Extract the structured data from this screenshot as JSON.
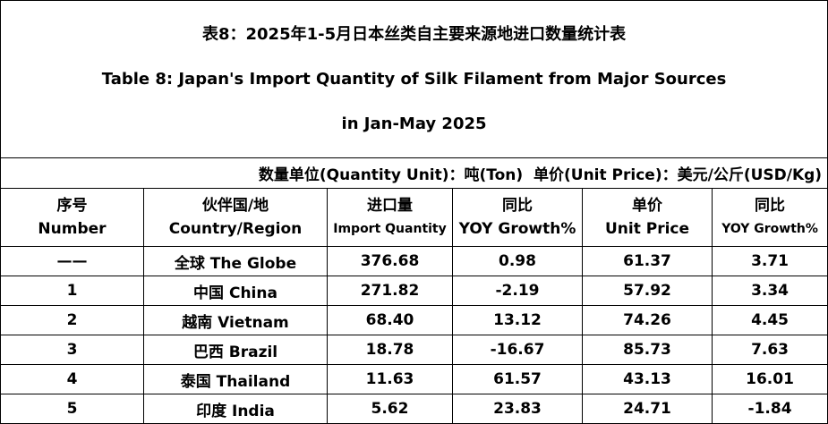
{
  "header": {
    "title": [
      "表8：2025年1-5月日本丝类自主要来源地进口数量统计表",
      "Table 8: Japan's Import Quantity of Silk Filament from Major Sources",
      "in Jan-May 2025"
    ],
    "unit": "数量单位(Quantity Unit)：吨(Ton)  单价(Unit Price)：美元/公斤(USD/Kg)"
  },
  "table": {
    "columns": [
      [
        "序号",
        "Number"
      ],
      [
        "伙伴国/地",
        "Country/Region"
      ],
      [
        "进口量",
        "Import Quantity"
      ],
      [
        "同比",
        "YOY Growth%"
      ],
      [
        "单价",
        "Unit Price"
      ],
      [
        "同比",
        "YOY Growth%"
      ]
    ],
    "rows": [
      [
        "——",
        "全球 The Globe",
        "376.68",
        "0.98",
        "61.37",
        "3.71"
      ],
      [
        "1",
        "中国 China",
        "271.82",
        "-2.19",
        "57.92",
        "3.34"
      ],
      [
        "2",
        "越南 Vietnam",
        "68.40",
        "13.12",
        "74.26",
        "4.45"
      ],
      [
        "3",
        "巴西 Brazil",
        "18.78",
        "-16.67",
        "85.73",
        "7.63"
      ],
      [
        "4",
        "泰国 Thailand",
        "11.63",
        "61.57",
        "43.13",
        "16.01"
      ],
      [
        "5",
        "印度 India",
        "5.62",
        "23.83",
        "24.71",
        "-1.84"
      ]
    ]
  }
}
